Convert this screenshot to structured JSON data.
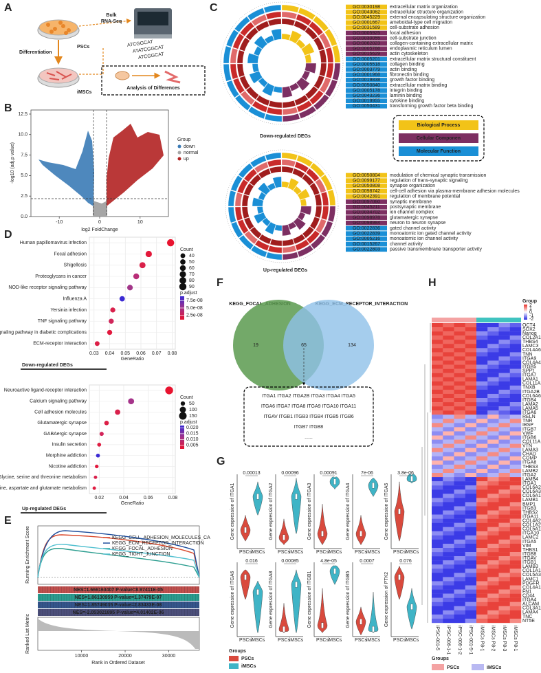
{
  "A": {
    "letter": "A",
    "bulk": "Bulk",
    "rnaseq": "RNA-Seq",
    "psc": "PSCs",
    "diff": "Differentiation",
    "imsc": "iMSCs",
    "analysis": "Analysis of Differences",
    "sequence": [
      "ATCGGCAT",
      "ATATCGGCAT",
      "ATCGGCAT"
    ]
  },
  "B": {
    "letter": "B",
    "xlabel": "log2 FoldChange",
    "ylabel": "-log10 (adj.p value)",
    "xlim": [
      -17,
      17
    ],
    "ylim": [
      0,
      13
    ],
    "xticks": [
      -10,
      0,
      10
    ],
    "yticks": [
      {
        "value": 0,
        "label": "0.0"
      },
      {
        "value": 2.5,
        "label": "2.5"
      },
      {
        "value": 5,
        "label": "5.0"
      },
      {
        "value": 7.5,
        "label": "7.5"
      },
      {
        "value": 10,
        "label": "10.0"
      },
      {
        "value": 12.5,
        "label": "12.5"
      }
    ],
    "legend_title": "Group",
    "groups": [
      {
        "name": "down",
        "color": "#3b7bb6"
      },
      {
        "name": "normal",
        "color": "#a6a6a6"
      },
      {
        "name": "up",
        "color": "#b22222"
      }
    ]
  },
  "C": {
    "letter": "C",
    "down": {
      "title": "Down-regulated DEGs",
      "groups": [
        {
          "color": "#f2c318",
          "terms": [
            {
              "id": "GO:0030198",
              "name": "extracellular matrix organization"
            },
            {
              "id": "GO:0043062",
              "name": "extracellular structure organization"
            },
            {
              "id": "GO:0045229",
              "name": "external encapsulating structure organization"
            },
            {
              "id": "GO:0001667",
              "name": "ameboidal-type cell migration"
            },
            {
              "id": "GO:0031589",
              "name": "cell-substrate adhesion"
            }
          ]
        },
        {
          "color": "#7d2f62",
          "terms": [
            {
              "id": "GO:0005925",
              "name": "focal adhesion"
            },
            {
              "id": "GO:0030055",
              "name": "cell-substrate junction"
            },
            {
              "id": "GO:0062023",
              "name": "collagen-containing extracellular matrix"
            },
            {
              "id": "GO:0005788",
              "name": "endoplasmic reticulum lumen"
            },
            {
              "id": "GO:0015629",
              "name": "actin cytoskeleton"
            }
          ]
        },
        {
          "color": "#1a8fd6",
          "terms": [
            {
              "id": "GO:0005201",
              "name": "extracellular matrix structural constituent"
            },
            {
              "id": "GO:0005518",
              "name": "collagen binding"
            },
            {
              "id": "GO:0003779",
              "name": "actin binding"
            },
            {
              "id": "GO:0001968",
              "name": "fibronectin binding"
            },
            {
              "id": "GO:0019838",
              "name": "growth factor binding"
            },
            {
              "id": "GO:0050840",
              "name": "extracellular matrix binding"
            },
            {
              "id": "GO:0005178",
              "name": "integrin binding"
            },
            {
              "id": "GO:0043236",
              "name": "laminin binding"
            },
            {
              "id": "GO:0019955",
              "name": "cytokine binding"
            },
            {
              "id": "GO:0050431",
              "name": "transforming growth factor beta binding"
            }
          ]
        }
      ]
    },
    "up": {
      "title": "Up-regulated DEGs",
      "groups": [
        {
          "color": "#f2c318",
          "terms": [
            {
              "id": "GO:0050804",
              "name": "modulation of chemical synaptic transmission"
            },
            {
              "id": "GO:0099177",
              "name": "regulation of trans-synaptic signaling"
            },
            {
              "id": "GO:0050808",
              "name": "synapse organization"
            },
            {
              "id": "GO:0098742",
              "name": "cell-cell adhesion via plasma-membrane adhesion molecules"
            },
            {
              "id": "GO:0042391",
              "name": "regulation of membrane potential"
            }
          ]
        },
        {
          "color": "#7d2f62",
          "terms": [
            {
              "id": "GO:0097060",
              "name": "synaptic membrane"
            },
            {
              "id": "GO:0045211",
              "name": "postsynaptic membrane"
            },
            {
              "id": "GO:0034702",
              "name": "ion channel complex"
            },
            {
              "id": "GO:0098978",
              "name": "glutamatergic synapse"
            },
            {
              "id": "GO:0098984",
              "name": "neuron to neuron synapse"
            }
          ]
        },
        {
          "color": "#1a8fd6",
          "terms": [
            {
              "id": "GO:0022836",
              "name": "gated channel activity"
            },
            {
              "id": "GO:0022839",
              "name": "monoatomic ion gated channel activity"
            },
            {
              "id": "GO:0005216",
              "name": "monoatomic ion channel activity"
            },
            {
              "id": "GO:0015267",
              "name": "channel activity"
            },
            {
              "id": "GO:0022803",
              "name": "passive transmembrane transporter activity"
            }
          ]
        }
      ]
    },
    "legend": [
      {
        "name": "Biological Process",
        "color": "#f2c318"
      },
      {
        "name": "Cellular Componen",
        "color": "#7d2f62"
      },
      {
        "name": "Molecular Function",
        "color": "#1a8fd6"
      }
    ]
  },
  "D": {
    "letter": "D",
    "panels": [
      {
        "caption": "Down-regulated DEGs",
        "xlabel": "GeneRatio",
        "xlim": [
          0.027,
          0.082
        ],
        "xticks": [
          0.03,
          0.04,
          0.05,
          0.06,
          0.07,
          0.08
        ],
        "terms": [
          "Human papillomavirus infection",
          "Focal adhesion",
          "Shigellosis",
          "Proteoglycans in cancer",
          "NOD-like receptor signaling pathway",
          "Influenza A",
          "Yersinia infection",
          "TNF signaling pathway",
          "AGE-RAGE signaling pathway in diabetic complications",
          "ECM-receptor interaction"
        ],
        "gene_ratio": [
          0.079,
          0.065,
          0.061,
          0.057,
          0.053,
          0.048,
          0.042,
          0.041,
          0.04,
          0.032
        ],
        "count": [
          90,
          70,
          65,
          60,
          55,
          50,
          45,
          45,
          45,
          40
        ],
        "colors": [
          "#e8132f",
          "#e3183a",
          "#d92149",
          "#b92e78",
          "#a23689",
          "#3b2ad3",
          "#d9214c",
          "#d0265a",
          "#e2193e",
          "#dc1f46"
        ],
        "count_title": "Count",
        "count_legend": [
          40,
          50,
          60,
          70,
          80,
          90
        ],
        "padj_title": "p.adjust",
        "padj_lim": [
          1e-08,
          9e-08
        ],
        "padj_ticks": [
          {
            "value": 7.5e-08,
            "label": "7.5e-08"
          },
          {
            "value": 5e-08,
            "label": "5.0e-08"
          },
          {
            "value": 2.5e-08,
            "label": "2.5e-08"
          }
        ]
      },
      {
        "caption": "Up-regulated DEGs",
        "xlabel": "GeneRatio",
        "xlim": [
          0.012,
          0.082
        ],
        "xticks": [
          0.02,
          0.04,
          0.06,
          0.08
        ],
        "terms": [
          "Neuroactive ligand-receptor interaction",
          "Calcium signaling pathway",
          "Cell adhesion molecules",
          "Glutamatergic synapse",
          "GABAergic synapse",
          "Insulin secretion",
          "Morphine addiction",
          "Nicotine addiction",
          "Glycine, serine and threonine metabolism",
          "Alanine, aspartate and glutamate metabolism"
        ],
        "gene_ratio": [
          0.077,
          0.046,
          0.035,
          0.026,
          0.022,
          0.02,
          0.019,
          0.018,
          0.017,
          0.016
        ],
        "count": [
          160,
          95,
          75,
          55,
          45,
          40,
          40,
          35,
          30,
          30
        ],
        "colors": [
          "#e8132f",
          "#a5338a",
          "#d9214c",
          "#dc1f46",
          "#d3255a",
          "#df1d42",
          "#3b2ad3",
          "#e2193e",
          "#d9214c",
          "#e01b40"
        ],
        "count_title": "Count",
        "count_legend": [
          50,
          100,
          150
        ],
        "padj_title": "p.adjust",
        "padj_lim": [
          0.002,
          0.022
        ],
        "padj_ticks": [
          {
            "value": 0.005,
            "label": "0.005"
          },
          {
            "value": 0.01,
            "label": "0.010"
          },
          {
            "value": 0.015,
            "label": "0.015"
          },
          {
            "value": 0.02,
            "label": "0.020"
          }
        ]
      }
    ]
  },
  "E": {
    "letter": "E",
    "ylabel": "Running Enrichment Score",
    "ylabel2": "Ranked List Metric",
    "xlabel": "Rank in Ordered Dataset",
    "xlim": [
      0,
      37000
    ],
    "xticks": [
      10000,
      20000,
      30000
    ],
    "series": [
      {
        "name": "KEGG_CELL_ADHESION_MOLECULES_CA",
        "color": "#d9482b"
      },
      {
        "name": "KEGG_ECM_RECEPTOR_INTERACTION",
        "color": "#1f4e9c"
      },
      {
        "name": "KEGG_FOCAL_ADHESION",
        "color": "#2a9d8f"
      },
      {
        "name": "KEGG_TIGHT_JUNCTION",
        "color": "#52c0d0"
      }
    ],
    "nes": [
      {
        "text": "NES=1.666163407 P-value=8.97411E-05",
        "color": "#c0504d"
      },
      {
        "text": "NES=1.86130959 P-value=1.37479E-07",
        "color": "#2a9d8f"
      },
      {
        "text": "NES=1.85749035 P-value=2.83433E-08",
        "color": "#34558b"
      },
      {
        "text": "NES=-2.053021895 P-value=4.01402E-06",
        "color": "#4c4f7a"
      }
    ]
  },
  "F": {
    "letter": "F",
    "sets": [
      "KEGG_FOCAL_ADHESION",
      "KEGG_ECM_RECEPTOR_INTERACTION"
    ],
    "counts": [
      19,
      65,
      134
    ],
    "genes": [
      "ITGA1 ITGA2 ITGA2B ITGA3 ITGA4 ITGA5",
      "ITGA6 ITGA7 ITGA8 ITGA9 ITGA10 ITGA11",
      "ITGAV ITGB1 ITGB3 ITGB4 ITGB5 ITGB6",
      "ITGB7 ITGB8",
      "......"
    ]
  },
  "G": {
    "letter": "G",
    "groups": [
      "PSCs",
      "iMSCs"
    ],
    "legend_title": "Groups",
    "colors": [
      "#d94a3d",
      "#3fb4c6"
    ],
    "violins": [
      {
        "ylabel": "Gene expression of ITGA1",
        "p": "0.00013"
      },
      {
        "ylabel": "Gene expression of ITGA2",
        "p": "0.00096"
      },
      {
        "ylabel": "Gene expression of ITGA3",
        "p": "0.00091"
      },
      {
        "ylabel": "Gene expression of ITGA4",
        "p": "7e-06"
      },
      {
        "ylabel": "Gene expression of ITGA5",
        "p": "3.8e-06"
      },
      {
        "ylabel": "Gene expression of ITGA6",
        "p": "0.016"
      },
      {
        "ylabel": "Gene expression of ITGA8",
        "p": "0.00085"
      },
      {
        "ylabel": "Gene expression of ITGB1",
        "p": "4.8e-05"
      },
      {
        "ylabel": "Gene expression of ITGB5",
        "p": "0.0007"
      },
      {
        "ylabel": "Gene expression of PTK2",
        "p": "0.076"
      }
    ]
  },
  "H": {
    "letter": "H",
    "annotation_title": "Group",
    "scale_ticks": [
      2,
      1,
      0,
      -1,
      -2
    ],
    "legend_title": "Groups",
    "groups": [
      {
        "name": "PSCs",
        "color": "#f4a3a3"
      },
      {
        "name": "iMSCs",
        "color": "#b9b9f2"
      }
    ],
    "samples": [
      "iPSC-001-5",
      "iPSC-006-1-1",
      "iPSC-006-1-2",
      "iPSC-001-5-1",
      "iMSCs P8-1",
      "iMSCs P8-2",
      "iMSCs P8-3",
      "iMSCs P8-1"
    ],
    "genes": [
      "OCT4",
      "SOX2",
      "Nanog",
      "COL2A1",
      "THBS4",
      "LAMC3",
      "COL4A6",
      "TNN",
      "ITGA9",
      "COL4A4",
      "ITGB5",
      "SPP1",
      "ITGA7",
      "LAMA1",
      "COL11A2",
      "TNXB",
      "ITGA2B",
      "COL6A6",
      "ITGB4",
      "LAMA2",
      "LAMA5",
      "ITGA6",
      "RELN",
      "TNR",
      "IBSP",
      "ITGB7",
      "VWF",
      "ITGB6",
      "COL11A1",
      "VTN",
      "LAMA3",
      "CHAD",
      "COMP",
      "ITGA8",
      "THBS3",
      "LAMB2",
      "ITGA2",
      "LAMB4",
      "ITGA1",
      "COL6A2",
      "COL6A3",
      "COL6A1",
      "LAMB1",
      "BMP1",
      "ITGB3",
      "THBS2",
      "ITGA11",
      "COL4A2",
      "COL1A2",
      "COL5A1",
      "ITGA10",
      "LAMC2",
      "ITGA5",
      "VIM",
      "THBS1",
      "ITGB8",
      "ITGAV",
      "ITGB1",
      "LAMB3",
      "COL1A1",
      "COL5A3",
      "LAMC1",
      "PDGFR",
      "COL4A1",
      "FN1",
      "CD44",
      "ITGA4",
      "ALCAM",
      "COL3A1",
      "LAMA4",
      "TNC",
      "NT5E"
    ]
  }
}
